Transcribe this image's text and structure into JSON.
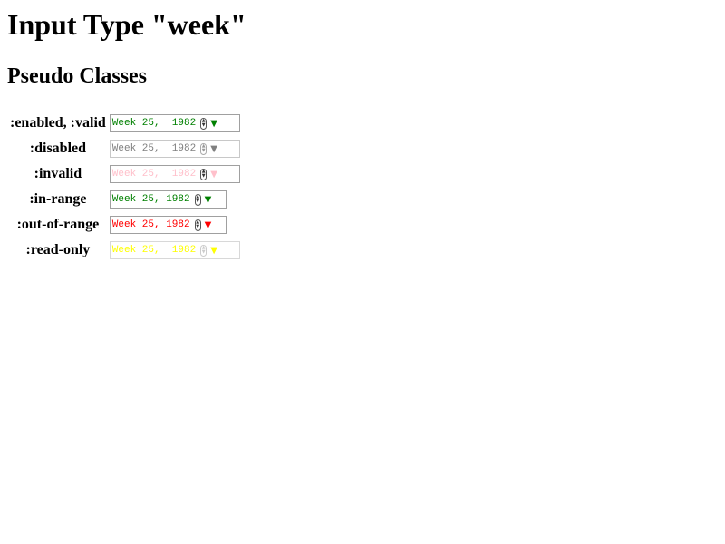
{
  "page": {
    "title": "Input Type \"week\"",
    "subtitle": "Pseudo Classes"
  },
  "rows": [
    {
      "label": ":enabled, :valid",
      "value": "Week 25,  1982",
      "color": "#008000"
    },
    {
      "label": ":disabled",
      "value": "Week 25,  1982",
      "color": "#808080"
    },
    {
      "label": ":invalid",
      "value": "Week 25,  1982",
      "color": "#ffc0cb"
    },
    {
      "label": ":in-range",
      "value": "Week 25, 1982",
      "color": "#008000"
    },
    {
      "label": ":out-of-range",
      "value": "Week 25, 1982",
      "color": "#ff0000"
    },
    {
      "label": ":read-only",
      "value": "Week 25,  1982",
      "color": "#ffff00"
    }
  ],
  "icons": {
    "spinner": "spinner-icon",
    "dropdown": "dropdown-arrow-icon"
  }
}
